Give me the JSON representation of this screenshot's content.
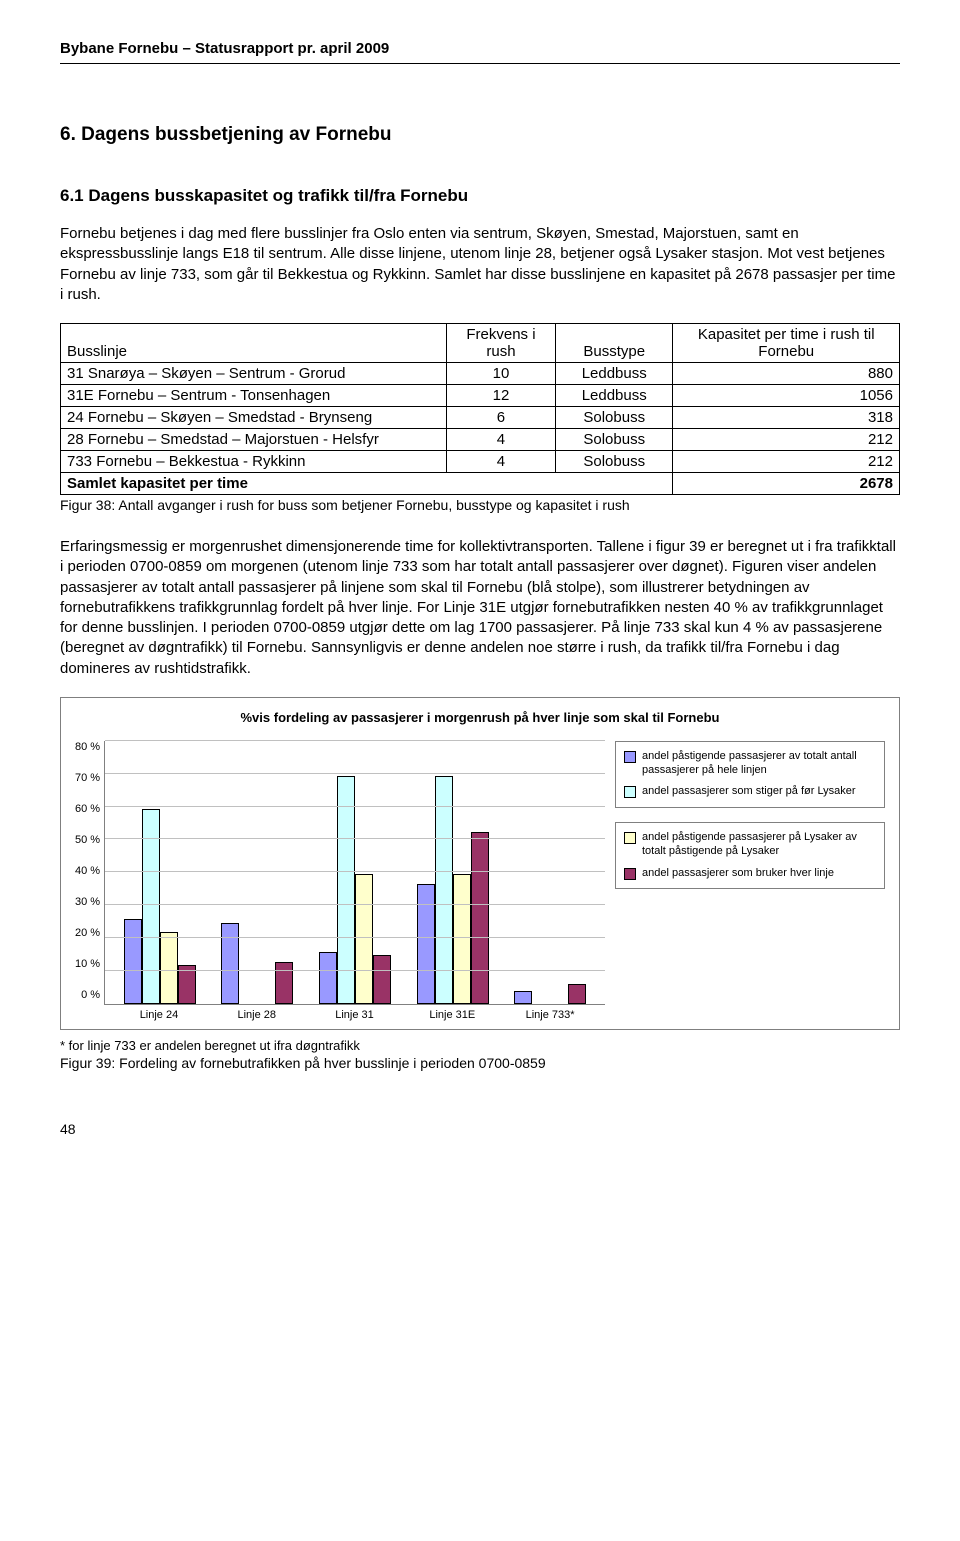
{
  "doc": {
    "header": "Bybane Fornebu – Statusrapport pr. april 2009",
    "section_title": "6.  Dagens bussbetjening av Fornebu",
    "subsection_title": "6.1   Dagens busskapasitet og trafikk til/fra Fornebu",
    "para1": "Fornebu betjenes i dag med flere busslinjer fra Oslo enten via sentrum, Skøyen, Smestad, Majorstuen, samt en ekspressbusslinje langs E18 til sentrum. Alle disse linjene, utenom linje 28, betjener også Lysaker stasjon. Mot vest betjenes Fornebu av linje 733, som går til Bekkestua og Rykkinn. Samlet har disse busslinjene en kapasitet på 2678 passasjer per time i rush.",
    "table_caption": "Figur 38:   Antall avganger i rush for buss som betjener Fornebu, busstype og kapasitet i rush",
    "para2": "Erfaringsmessig er morgenrushet dimensjonerende time for kollektivtransporten. Tallene i figur 39 er beregnet ut i fra trafikktall i perioden 0700-0859 om morgenen (utenom linje 733 som har totalt antall passasjerer over døgnet).  Figuren viser andelen passasjerer av totalt antall passasjerer på linjene som skal til Fornebu (blå stolpe), som illustrerer betydningen av fornebutrafikkens trafikkgrunnlag fordelt på hver linje. For Linje 31E utgjør fornebutrafikken nesten 40 % av trafikkgrunnlaget for denne busslinjen. I perioden 0700-0859 utgjør dette om lag 1700 passasjerer. På linje 733 skal kun 4 % av passasjerene (beregnet av døgntrafikk) til Fornebu. Sannsynligvis er denne andelen noe større i rush, da trafikk til/fra Fornebu i dag domineres av rushtidstrafikk.",
    "footnote": "* for linje 733 er andelen beregnet ut ifra døgntrafikk",
    "chart_caption": "Figur 39:   Fordeling av fornebutrafikken på hver busslinje i perioden 0700-0859",
    "page_num": "48"
  },
  "table": {
    "headers": [
      "Busslinje",
      "Frekvens i rush",
      "Busstype",
      "Kapasitet per time i rush til Fornebu"
    ],
    "rows": [
      [
        "31   Snarøya – Skøyen – Sentrum - Grorud",
        "10",
        "Leddbuss",
        "880"
      ],
      [
        "31E Fornebu – Sentrum - Tonsenhagen",
        "12",
        "Leddbuss",
        "1056"
      ],
      [
        "24   Fornebu – Skøyen – Smedstad - Brynseng",
        "6",
        "Solobuss",
        "318"
      ],
      [
        "28   Fornebu – Smedstad – Majorstuen - Helsfyr",
        "4",
        "Solobuss",
        "212"
      ],
      [
        "733 Fornebu – Bekkestua - Rykkinn",
        "4",
        "Solobuss",
        "212"
      ]
    ],
    "total": [
      "Samlet kapasitet per time",
      "",
      "",
      "2678"
    ]
  },
  "chart": {
    "title": "%vis fordeling av passasjerer i morgenrush på hver linje som skal til Fornebu",
    "ymax": 80,
    "ytick_step": 10,
    "yticks": [
      "0 %",
      "10 %",
      "20 %",
      "30 %",
      "40 %",
      "50 %",
      "60 %",
      "70 %",
      "80 %"
    ],
    "categories": [
      "Linje 24",
      "Linje 28",
      "Linje 31",
      "Linje 31E",
      "Linje 733*"
    ],
    "series": [
      {
        "key": "s1",
        "label": "andel påstigende passasjerer av totalt antall passasjerer på hele linjen",
        "color": "#9999ff"
      },
      {
        "key": "s2",
        "label": "andel passasjerer som stiger på før Lysaker",
        "color": "#ccffff"
      },
      {
        "key": "s3",
        "label": "andel påstigende passasjerer på Lysaker av totalt påstigende på Lysaker",
        "color": "#ffffcc"
      },
      {
        "key": "s4",
        "label": "andel passasjerer som bruker hver linje",
        "color": "#993366"
      }
    ],
    "legend_split": 2,
    "data": {
      "s1": [
        26,
        25,
        16,
        37,
        4
      ],
      "s2": [
        60,
        0,
        70,
        70,
        0
      ],
      "s3": [
        22,
        0,
        40,
        40,
        0
      ],
      "s4": [
        12,
        13,
        15,
        53,
        6
      ]
    },
    "grid_color": "#c0c0c0",
    "axis_color": "#808080",
    "label_fontsize": 11
  }
}
